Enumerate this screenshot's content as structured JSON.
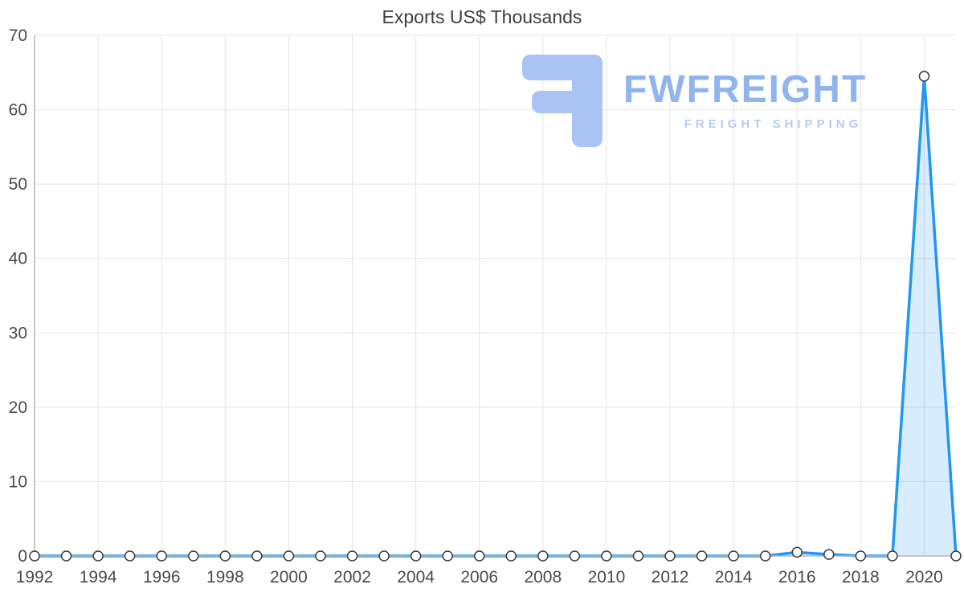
{
  "chart_data": {
    "type": "area",
    "title": "Exports US$ Thousands",
    "x": [
      1992,
      1993,
      1994,
      1995,
      1996,
      1997,
      1998,
      1999,
      2000,
      2001,
      2002,
      2003,
      2004,
      2005,
      2006,
      2007,
      2008,
      2009,
      2010,
      2011,
      2012,
      2013,
      2014,
      2015,
      2016,
      2017,
      2018,
      2019,
      2020,
      2021
    ],
    "series": [
      {
        "name": "Exports",
        "values": [
          0,
          0,
          0,
          0,
          0,
          0,
          0,
          0,
          0,
          0,
          0,
          0,
          0,
          0,
          0,
          0,
          0,
          0,
          0,
          0,
          0,
          0,
          0,
          0,
          0.5,
          0.2,
          0,
          0,
          64.5,
          0
        ]
      }
    ],
    "ylim": [
      0,
      70
    ],
    "yticks": [
      0,
      10,
      20,
      30,
      40,
      50,
      60,
      70
    ],
    "xticks": [
      1992,
      1994,
      1996,
      1998,
      2000,
      2002,
      2004,
      2006,
      2008,
      2010,
      2012,
      2014,
      2016,
      2018,
      2020
    ],
    "grid": "on",
    "legend": "none",
    "line_color": "#2196f3",
    "fill_color": "rgba(33,150,243,0.18)",
    "marker_fill": "#ffffff",
    "marker_stroke": "#3a3a3a"
  },
  "watermark": {
    "brand": "FWFREIGHT",
    "tagline": "FREIGHT SHIPPING",
    "logo_color": "#a9c3f2"
  }
}
